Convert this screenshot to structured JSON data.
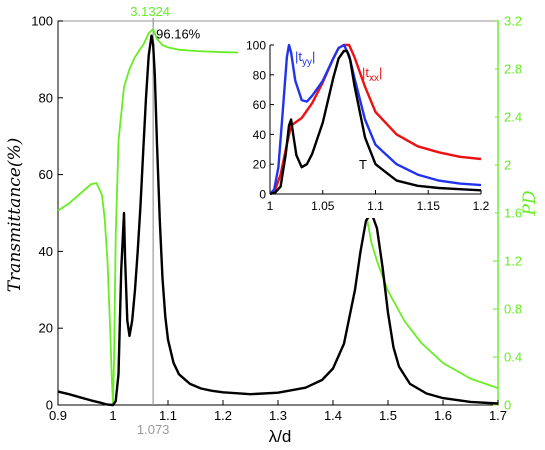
{
  "colors": {
    "left_axis": "#000000",
    "right_axis": "#66ee22",
    "marker": "#999999",
    "txx": "#ee1111",
    "tyy": "#2233ee",
    "T": "#000000",
    "PD": "#66ee22"
  },
  "chart_data": [
    {
      "type": "line",
      "title": "",
      "xlabel": "λ/d",
      "ylabel": "Transmittance(%)",
      "y2label": "PD",
      "xlim": [
        0.9,
        1.7
      ],
      "ylim": [
        0,
        100
      ],
      "y2lim": [
        0,
        3.2
      ],
      "grid": false,
      "x_ticks": [
        "0.9",
        "1",
        "1.1",
        "1.2",
        "1.3",
        "1.4",
        "1.5",
        "1.6",
        "1.7"
      ],
      "y_ticks": [
        "0",
        "20",
        "40",
        "60",
        "80",
        "100"
      ],
      "y2_ticks": [
        "0",
        "0.4",
        "0.8",
        "1.2",
        "1.6",
        "2",
        "2.4",
        "2.8",
        "3.2"
      ],
      "series": [
        {
          "axis": "left",
          "color": "#000000",
          "x": [
            0.9,
            0.92,
            0.94,
            0.96,
            0.98,
            0.99,
            1.0,
            1.005,
            1.01,
            1.015,
            1.02,
            1.022,
            1.026,
            1.03,
            1.035,
            1.04,
            1.045,
            1.05,
            1.055,
            1.06,
            1.065,
            1.07,
            1.073,
            1.076,
            1.08,
            1.085,
            1.09,
            1.095,
            1.1,
            1.11,
            1.12,
            1.14,
            1.16,
            1.18,
            1.2,
            1.25,
            1.3,
            1.35,
            1.38,
            1.4,
            1.42,
            1.44,
            1.45,
            1.46,
            1.47,
            1.48,
            1.49,
            1.5,
            1.51,
            1.52,
            1.54,
            1.57,
            1.6,
            1.65,
            1.7
          ],
          "y": [
            3.5,
            2.8,
            2.0,
            1.2,
            0.5,
            0.1,
            0,
            1,
            8,
            35,
            50,
            38,
            22,
            18,
            22,
            30,
            40,
            52,
            66,
            80,
            91,
            96.16,
            94,
            86,
            68,
            48,
            33,
            23,
            17,
            11,
            8,
            5.5,
            4.3,
            3.7,
            3.3,
            2.8,
            3.2,
            4.5,
            6.5,
            9.5,
            16,
            30,
            40,
            48,
            50,
            46,
            36,
            24,
            15,
            10,
            5.5,
            3,
            1.8,
            0.8,
            0.4
          ]
        },
        {
          "axis": "right",
          "color": "#66ee22",
          "x": [
            0.9,
            0.92,
            0.94,
            0.96,
            0.97,
            0.98,
            0.985,
            0.99,
            0.995,
            0.998,
            1.0,
            1.002,
            1.005,
            1.01,
            1.02,
            1.03,
            1.04,
            1.05,
            1.055,
            1.06,
            1.065,
            1.07,
            1.073,
            1.076,
            1.08,
            1.09,
            1.1,
            1.12,
            1.15,
            1.2,
            1.3,
            1.35,
            1.38,
            1.4,
            1.42,
            1.43,
            1.44,
            1.45,
            1.46,
            1.47,
            1.48,
            1.5,
            1.53,
            1.56,
            1.6,
            1.65,
            1.7
          ],
          "y": [
            1.62,
            1.68,
            1.76,
            1.84,
            1.85,
            1.75,
            1.55,
            1.2,
            0.6,
            0.2,
            0.02,
            0.4,
            1.4,
            2.2,
            2.65,
            2.8,
            2.9,
            2.97,
            3.0,
            3.05,
            3.1,
            3.12,
            3.1324,
            3.1,
            3.05,
            3.0,
            2.98,
            2.96,
            2.95,
            2.94,
            2.93,
            2.92,
            2.91,
            2.9,
            2.88,
            2.84,
            2.55,
            2.0,
            1.6,
            1.35,
            1.2,
            0.95,
            0.7,
            0.52,
            0.35,
            0.22,
            0.14
          ]
        }
      ],
      "annotations": [
        {
          "text": "3.1324",
          "x": 1.073,
          "y2": 3.1324
        },
        {
          "text": "96.16%",
          "x": 1.073,
          "y": 96.16
        },
        {
          "text": "1.073",
          "x": 1.073,
          "y": 0
        }
      ]
    },
    {
      "type": "line",
      "title": "",
      "inset": true,
      "xlabel": "",
      "ylabel": "",
      "xlim": [
        1.0,
        1.2
      ],
      "ylim": [
        0,
        100
      ],
      "grid": false,
      "x_ticks": [
        "1",
        "1.05",
        "1.1",
        "1.15",
        "1.2"
      ],
      "y_ticks": [
        "0",
        "20",
        "40",
        "60",
        "80",
        "100"
      ],
      "series": [
        {
          "label_main": "|t",
          "label_sub": "xx",
          "label_end": "|",
          "color": "#ee1111",
          "x": [
            1.0,
            1.005,
            1.01,
            1.015,
            1.02,
            1.03,
            1.04,
            1.05,
            1.06,
            1.065,
            1.07,
            1.075,
            1.08,
            1.09,
            1.1,
            1.12,
            1.14,
            1.16,
            1.18,
            1.2
          ],
          "y": [
            0,
            3,
            13,
            30,
            46,
            51,
            61,
            75,
            91,
            98,
            100,
            100,
            92,
            72,
            55,
            40,
            32,
            28,
            25,
            23.5
          ]
        },
        {
          "label_main": "|t",
          "label_sub": "yy",
          "label_end": "|",
          "color": "#2233ee",
          "x": [
            1.0,
            1.004,
            1.008,
            1.012,
            1.016,
            1.018,
            1.02,
            1.024,
            1.03,
            1.035,
            1.04,
            1.05,
            1.06,
            1.065,
            1.07,
            1.075,
            1.08,
            1.09,
            1.1,
            1.12,
            1.14,
            1.16,
            1.18,
            1.2
          ],
          "y": [
            0,
            3,
            18,
            55,
            92,
            100,
            95,
            76,
            63,
            62,
            66,
            76,
            91,
            98,
            100,
            93,
            78,
            50,
            33,
            20,
            13,
            9,
            7,
            6
          ]
        },
        {
          "label_main": "T",
          "color": "#000000",
          "x": [
            1.0,
            1.005,
            1.01,
            1.015,
            1.018,
            1.02,
            1.022,
            1.025,
            1.03,
            1.035,
            1.04,
            1.05,
            1.06,
            1.065,
            1.07,
            1.073,
            1.076,
            1.08,
            1.09,
            1.1,
            1.12,
            1.14,
            1.16,
            1.18,
            1.2
          ],
          "y": [
            0,
            1,
            5,
            27,
            46,
            50,
            40,
            26,
            18,
            20,
            27,
            48,
            78,
            91,
            96,
            96,
            90,
            73,
            38,
            20,
            9,
            5.5,
            4,
            3.2,
            2.5
          ]
        }
      ]
    }
  ]
}
